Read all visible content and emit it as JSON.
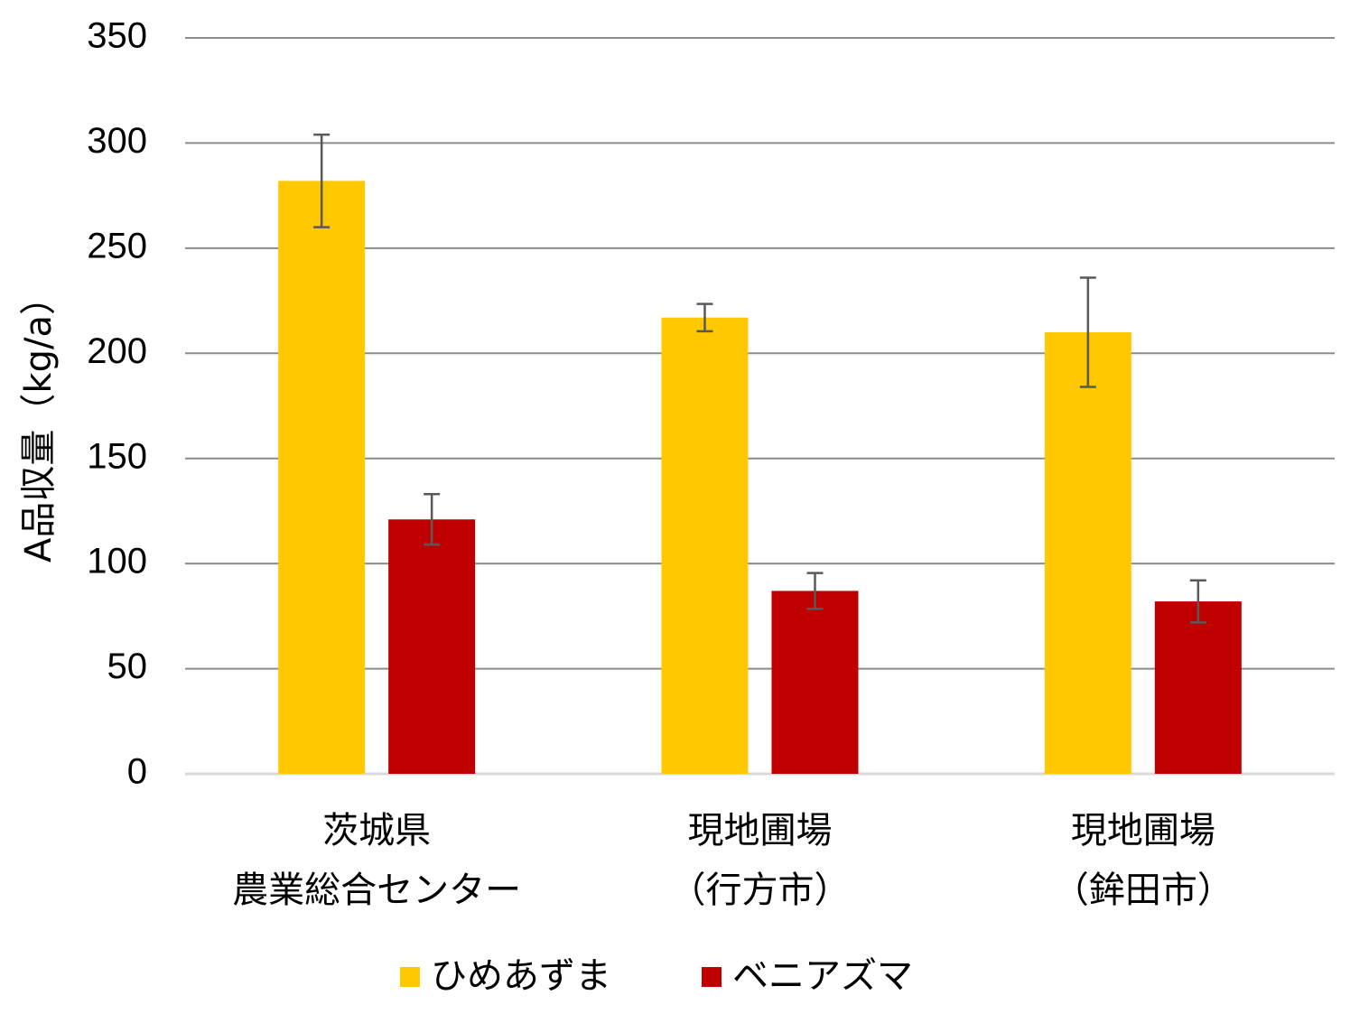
{
  "chart_data": {
    "type": "bar",
    "categories": [
      [
        "茨城県",
        "農業総合センター"
      ],
      [
        "現地圃場",
        "（行方市）"
      ],
      [
        "現地圃場",
        "（鉾田市）"
      ]
    ],
    "series": [
      {
        "name": "ひめあずま",
        "color": "#FFC800",
        "values": [
          282,
          217,
          210
        ],
        "error": [
          22,
          6.5,
          26
        ]
      },
      {
        "name": "ベニアズマ",
        "color": "#C00000",
        "values": [
          121,
          87,
          82
        ],
        "error": [
          12,
          8.5,
          10
        ]
      }
    ],
    "ylabel": "A品収量（kg/a）",
    "xlabel": "",
    "title": "",
    "ylim": [
      0,
      350
    ],
    "yticks": [
      0,
      50,
      100,
      150,
      200,
      250,
      300,
      350
    ],
    "grid": true,
    "legend_position": "bottom"
  }
}
